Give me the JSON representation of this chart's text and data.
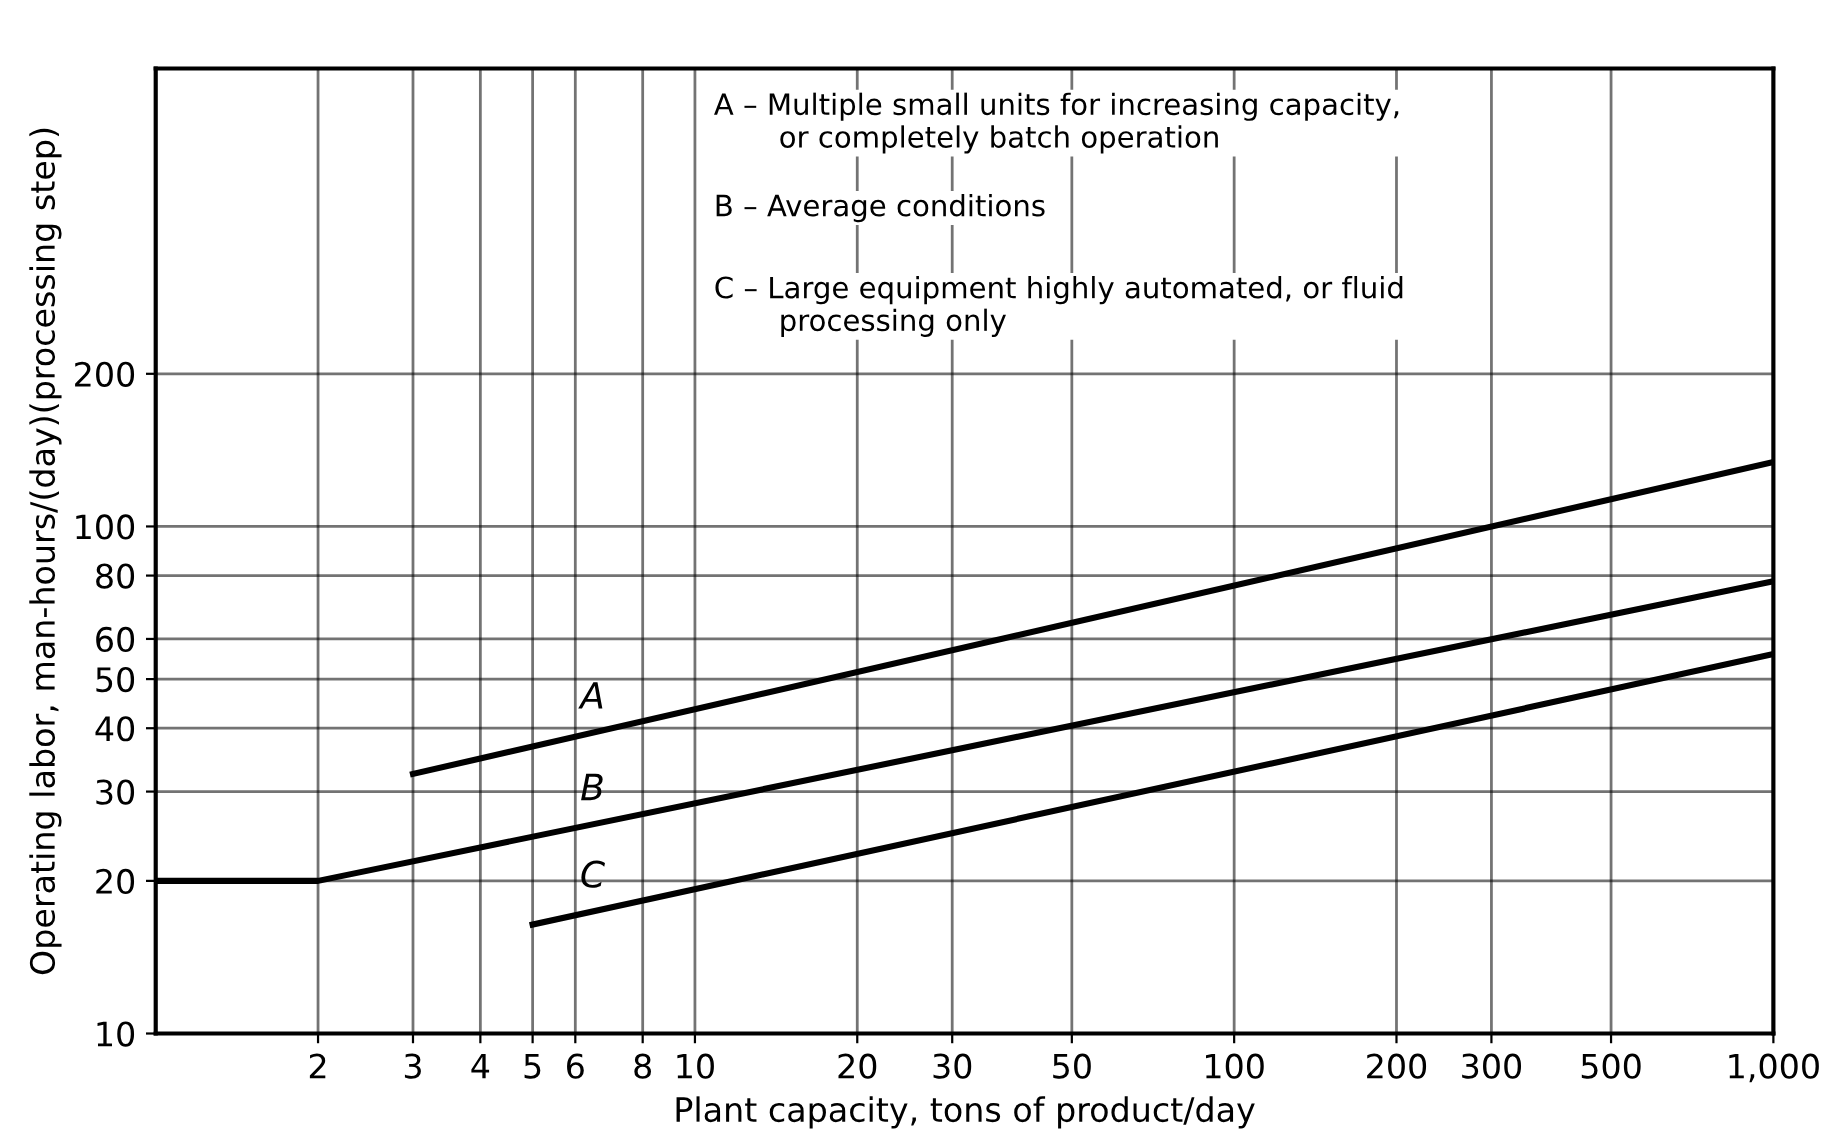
{
  "chart_data": {
    "type": "line",
    "xlabel": "Plant capacity, tons of product/day",
    "ylabel": "Operating labor, man-hours/(day)(processing step)",
    "series": [
      {
        "name": "A",
        "color": "#000000",
        "x": [
          3,
          1000
        ],
        "values": [
          32.5,
          134
        ]
      },
      {
        "name": "B",
        "color": "#000000",
        "x": [
          1,
          2,
          1000
        ],
        "values": [
          20,
          20,
          78
        ]
      },
      {
        "name": "C",
        "color": "#000000",
        "x": [
          5,
          1000
        ],
        "values": [
          16.4,
          56
        ]
      }
    ],
    "annotations": [
      "A – Multiple small units for increasing capacity,\n       or completely batch operation",
      "B – Average conditions",
      "C – Large equipment highly automated, or fluid\n       processing only"
    ],
    "log": "xy",
    "xlim": [
      1,
      1000
    ],
    "ylim": [
      10,
      800
    ],
    "xticks": [
      2,
      3,
      4,
      5,
      6,
      8,
      10,
      20,
      30,
      50,
      100,
      200,
      300,
      500,
      {
        "value": 1000,
        "label": "1,000"
      }
    ],
    "yticks": [
      10,
      20,
      30,
      40,
      50,
      60,
      80,
      100,
      200
    ],
    "grid": true,
    "line_style": "solid",
    "marker": "none",
    "legend": false
  }
}
